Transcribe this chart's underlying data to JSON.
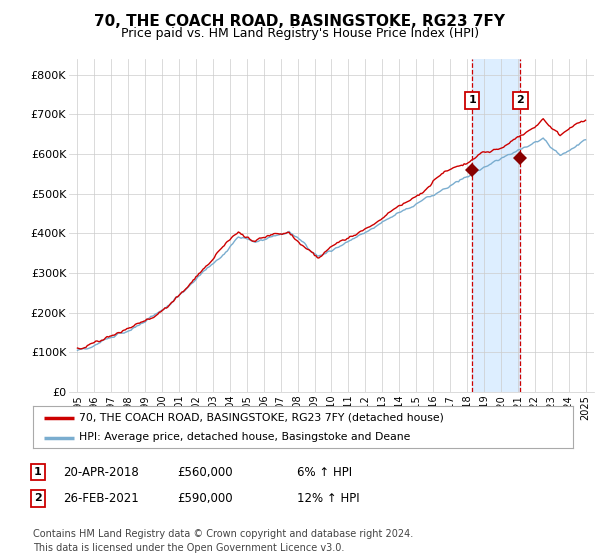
{
  "title": "70, THE COACH ROAD, BASINGSTOKE, RG23 7FY",
  "subtitle": "Price paid vs. HM Land Registry's House Price Index (HPI)",
  "title_fontsize": 11,
  "subtitle_fontsize": 9,
  "yticks": [
    0,
    100000,
    200000,
    300000,
    400000,
    500000,
    600000,
    700000,
    800000
  ],
  "ytick_labels": [
    "£0",
    "£100K",
    "£200K",
    "£300K",
    "£400K",
    "£500K",
    "£600K",
    "£700K",
    "£800K"
  ],
  "xlim_start": 1994.5,
  "xlim_end": 2025.5,
  "ylim_bottom": 0,
  "ylim_top": 840000,
  "red_line_color": "#cc0000",
  "blue_line_color": "#7aadcf",
  "shade_color": "#ddeeff",
  "vline_color": "#cc0000",
  "marker_color": "#880000",
  "sale1_x": 2018.3,
  "sale1_y": 560000,
  "sale2_x": 2021.15,
  "sale2_y": 590000,
  "legend_label1": "70, THE COACH ROAD, BASINGSTOKE, RG23 7FY (detached house)",
  "legend_label2": "HPI: Average price, detached house, Basingstoke and Deane",
  "sale1_date": "20-APR-2018",
  "sale1_price": "£560,000",
  "sale1_hpi": "6% ↑ HPI",
  "sale2_date": "26-FEB-2021",
  "sale2_price": "£590,000",
  "sale2_hpi": "12% ↑ HPI",
  "footer": "Contains HM Land Registry data © Crown copyright and database right 2024.\nThis data is licensed under the Open Government Licence v3.0.",
  "bg_color": "#ffffff",
  "grid_color": "#cccccc"
}
